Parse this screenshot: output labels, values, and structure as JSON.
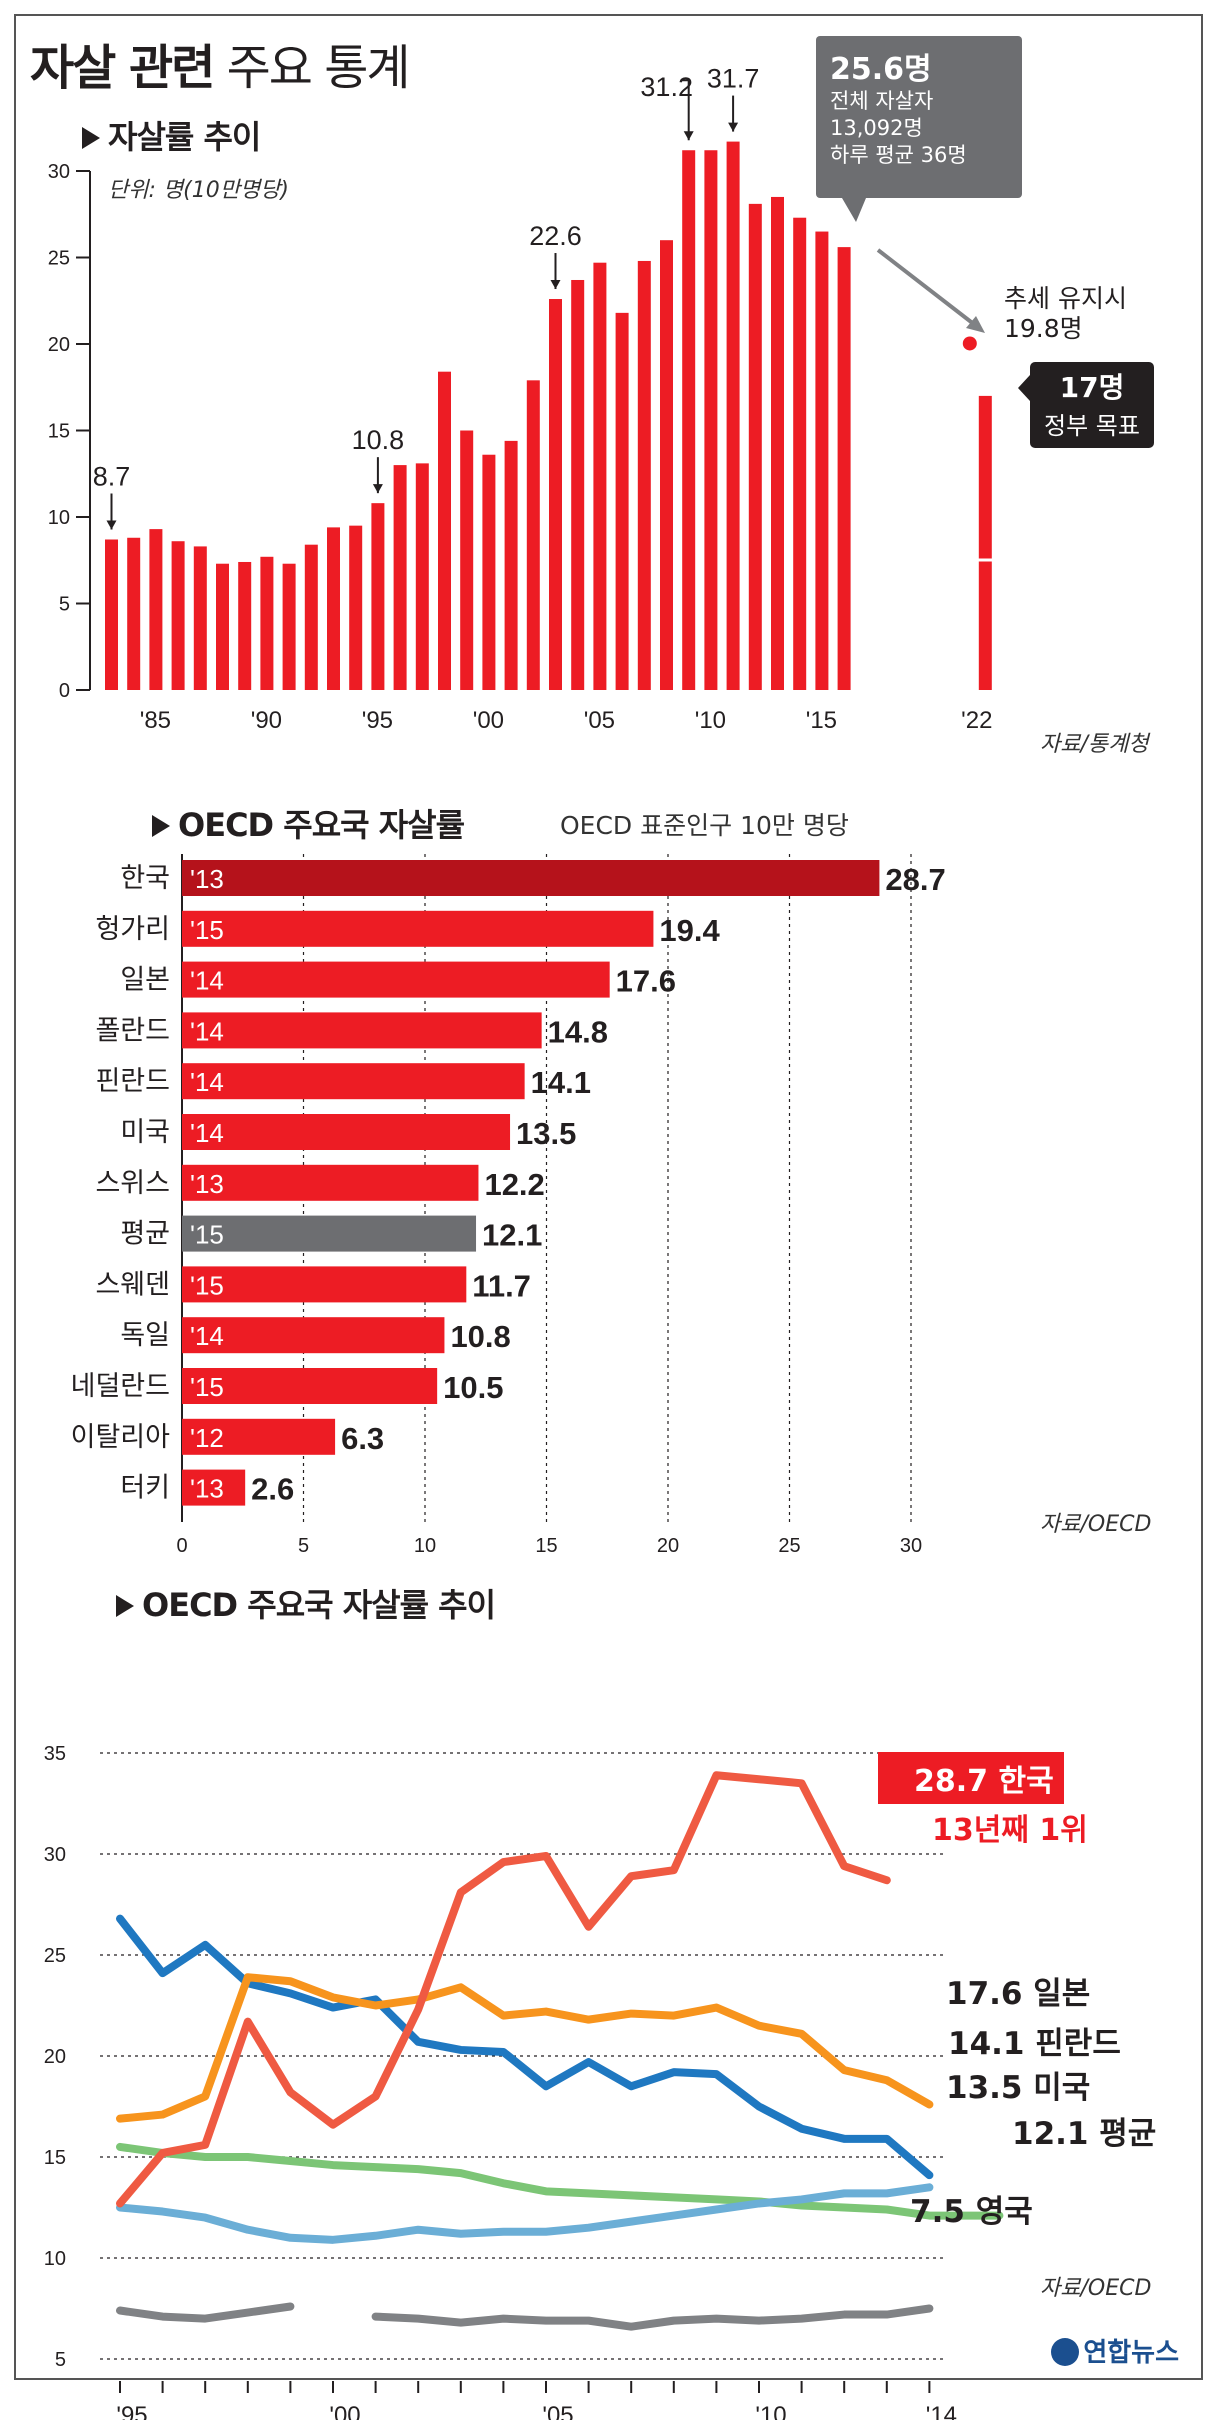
{
  "title": {
    "bold": "자살 관련",
    "normal": "주요 통계"
  },
  "section1": {
    "title": "자살률 추이",
    "unit": "단위: 명(10만명당)",
    "source": "자료/통계청",
    "callout_main": {
      "value": "25.6명",
      "line1": "전체 자살자",
      "line2": "13,092명",
      "line3": "하루 평균 36명"
    },
    "callout_trend": {
      "line1": "추세 유지시",
      "line2": "19.8명"
    },
    "callout_goal": {
      "value": "17명",
      "label": "정부 목표"
    }
  },
  "section2": {
    "title": "OECD 주요국 자살률",
    "subtitle": "OECD 표준인구 10만 명당",
    "source": "자료/OECD"
  },
  "section3": {
    "title": "OECD 주요국 자살률 추이",
    "source": "자료/OECD",
    "korea_tag": "28.7 한국",
    "korea_sub": "13년째 1위",
    "end_labels": [
      "17.6 일본",
      "14.1 핀란드",
      "13.5 미국",
      "12.1 평균",
      "7.5 영국"
    ]
  },
  "logo": "연합뉴스",
  "colors": {
    "red": "#ed1c24",
    "darkred": "#b5121b",
    "gray": "#6d6e71",
    "korea": "#ef5a42",
    "japan": "#f7941d",
    "finland": "#1f78c1",
    "usa": "#6baed6",
    "avg": "#7cc576",
    "uk": "#808285"
  },
  "chart_data": [
    {
      "type": "bar",
      "title": "자살률 추이",
      "ylabel": "단위: 명(10만명당)",
      "ylim": [
        0,
        30
      ],
      "yticks": [
        0,
        5,
        10,
        15,
        20,
        25,
        30
      ],
      "x_tick_labels": [
        "'85",
        "'90",
        "'95",
        "'00",
        "'05",
        "'10",
        "'15",
        "'22"
      ],
      "years": [
        1983,
        1984,
        1985,
        1986,
        1987,
        1988,
        1989,
        1990,
        1991,
        1992,
        1993,
        1994,
        1995,
        1996,
        1997,
        1998,
        1999,
        2000,
        2001,
        2002,
        2003,
        2004,
        2005,
        2006,
        2007,
        2008,
        2009,
        2010,
        2011,
        2012,
        2013,
        2014,
        2015,
        2016
      ],
      "values": [
        8.7,
        8.8,
        9.3,
        8.6,
        8.3,
        7.3,
        7.4,
        7.7,
        7.3,
        8.4,
        9.4,
        9.5,
        10.8,
        13.0,
        13.1,
        18.4,
        15.0,
        13.6,
        14.4,
        17.9,
        22.6,
        23.7,
        24.7,
        21.8,
        24.8,
        26.0,
        31.2,
        31.2,
        31.7,
        28.1,
        28.5,
        27.3,
        26.5,
        25.6
      ],
      "target": {
        "year": 2022,
        "value": 17,
        "label": "17명"
      },
      "trend": {
        "year": 2022,
        "value": 19.8
      },
      "annotations": [
        {
          "year": 1983,
          "label": "8.7"
        },
        {
          "year": 1995,
          "label": "10.8"
        },
        {
          "year": 2003,
          "label": "22.6"
        },
        {
          "year": 2009,
          "label": "31.2"
        },
        {
          "year": 2011,
          "label": "31.7"
        }
      ]
    },
    {
      "type": "bar",
      "orientation": "horizontal",
      "title": "OECD 주요국 자살률",
      "xlim": [
        0,
        30
      ],
      "xticks": [
        0,
        5,
        10,
        15,
        20,
        25,
        30
      ],
      "categories": [
        "한국",
        "헝가리",
        "일본",
        "폴란드",
        "핀란드",
        "미국",
        "스위스",
        "평균",
        "스웨덴",
        "독일",
        "네덜란드",
        "이탈리아",
        "터키"
      ],
      "years": [
        "'13",
        "'15",
        "'14",
        "'14",
        "'14",
        "'14",
        "'13",
        "'15",
        "'15",
        "'14",
        "'15",
        "'12",
        "'13"
      ],
      "values": [
        28.7,
        19.4,
        17.6,
        14.8,
        14.1,
        13.5,
        12.2,
        12.1,
        11.7,
        10.8,
        10.5,
        6.3,
        2.6
      ]
    },
    {
      "type": "line",
      "title": "OECD 주요국 자살률 추이",
      "ylim": [
        5,
        35
      ],
      "yticks": [
        5,
        10,
        15,
        20,
        25,
        30,
        35
      ],
      "x_tick_labels": [
        "'95",
        "'00",
        "'05",
        "'10",
        "'14"
      ],
      "x": [
        1995,
        1996,
        1997,
        1998,
        1999,
        2000,
        2001,
        2002,
        2003,
        2004,
        2005,
        2006,
        2007,
        2008,
        2009,
        2010,
        2011,
        2012,
        2013,
        2014
      ],
      "series": [
        {
          "name": "한국",
          "values": [
            12.7,
            15.2,
            15.6,
            21.7,
            18.2,
            16.6,
            18.0,
            22.3,
            28.1,
            29.6,
            29.9,
            26.4,
            28.9,
            29.2,
            33.9,
            33.7,
            33.5,
            29.4,
            28.7,
            null
          ]
        },
        {
          "name": "일본",
          "values": [
            16.9,
            17.1,
            18.0,
            23.9,
            23.7,
            22.9,
            22.5,
            22.8,
            23.4,
            22.0,
            22.2,
            21.8,
            22.1,
            22.0,
            22.4,
            21.5,
            21.1,
            19.3,
            18.8,
            17.6
          ]
        },
        {
          "name": "핀란드",
          "values": [
            26.8,
            24.1,
            25.5,
            23.6,
            23.1,
            22.4,
            22.8,
            20.7,
            20.3,
            20.2,
            18.5,
            19.7,
            18.5,
            19.2,
            19.1,
            17.5,
            16.4,
            15.9,
            15.9,
            14.1
          ]
        },
        {
          "name": "미국",
          "values": [
            12.5,
            12.3,
            12.0,
            11.4,
            11.0,
            10.9,
            11.1,
            11.4,
            11.2,
            11.3,
            11.3,
            11.5,
            11.8,
            12.1,
            12.4,
            12.7,
            12.9,
            13.2,
            13.2,
            13.5
          ]
        },
        {
          "name": "평균",
          "values": [
            15.5,
            15.2,
            15.0,
            15.0,
            14.8,
            14.6,
            14.5,
            14.4,
            14.2,
            13.7,
            13.3,
            13.2,
            13.1,
            13.0,
            12.9,
            12.8,
            12.6,
            12.5,
            12.4,
            12.1
          ]
        },
        {
          "name": "영국",
          "values": [
            7.4,
            7.1,
            7.0,
            7.3,
            7.6,
            null,
            7.1,
            7.0,
            6.8,
            7.0,
            6.9,
            6.9,
            6.6,
            6.9,
            7.0,
            6.9,
            7.0,
            7.2,
            7.2,
            7.5
          ]
        }
      ]
    }
  ]
}
